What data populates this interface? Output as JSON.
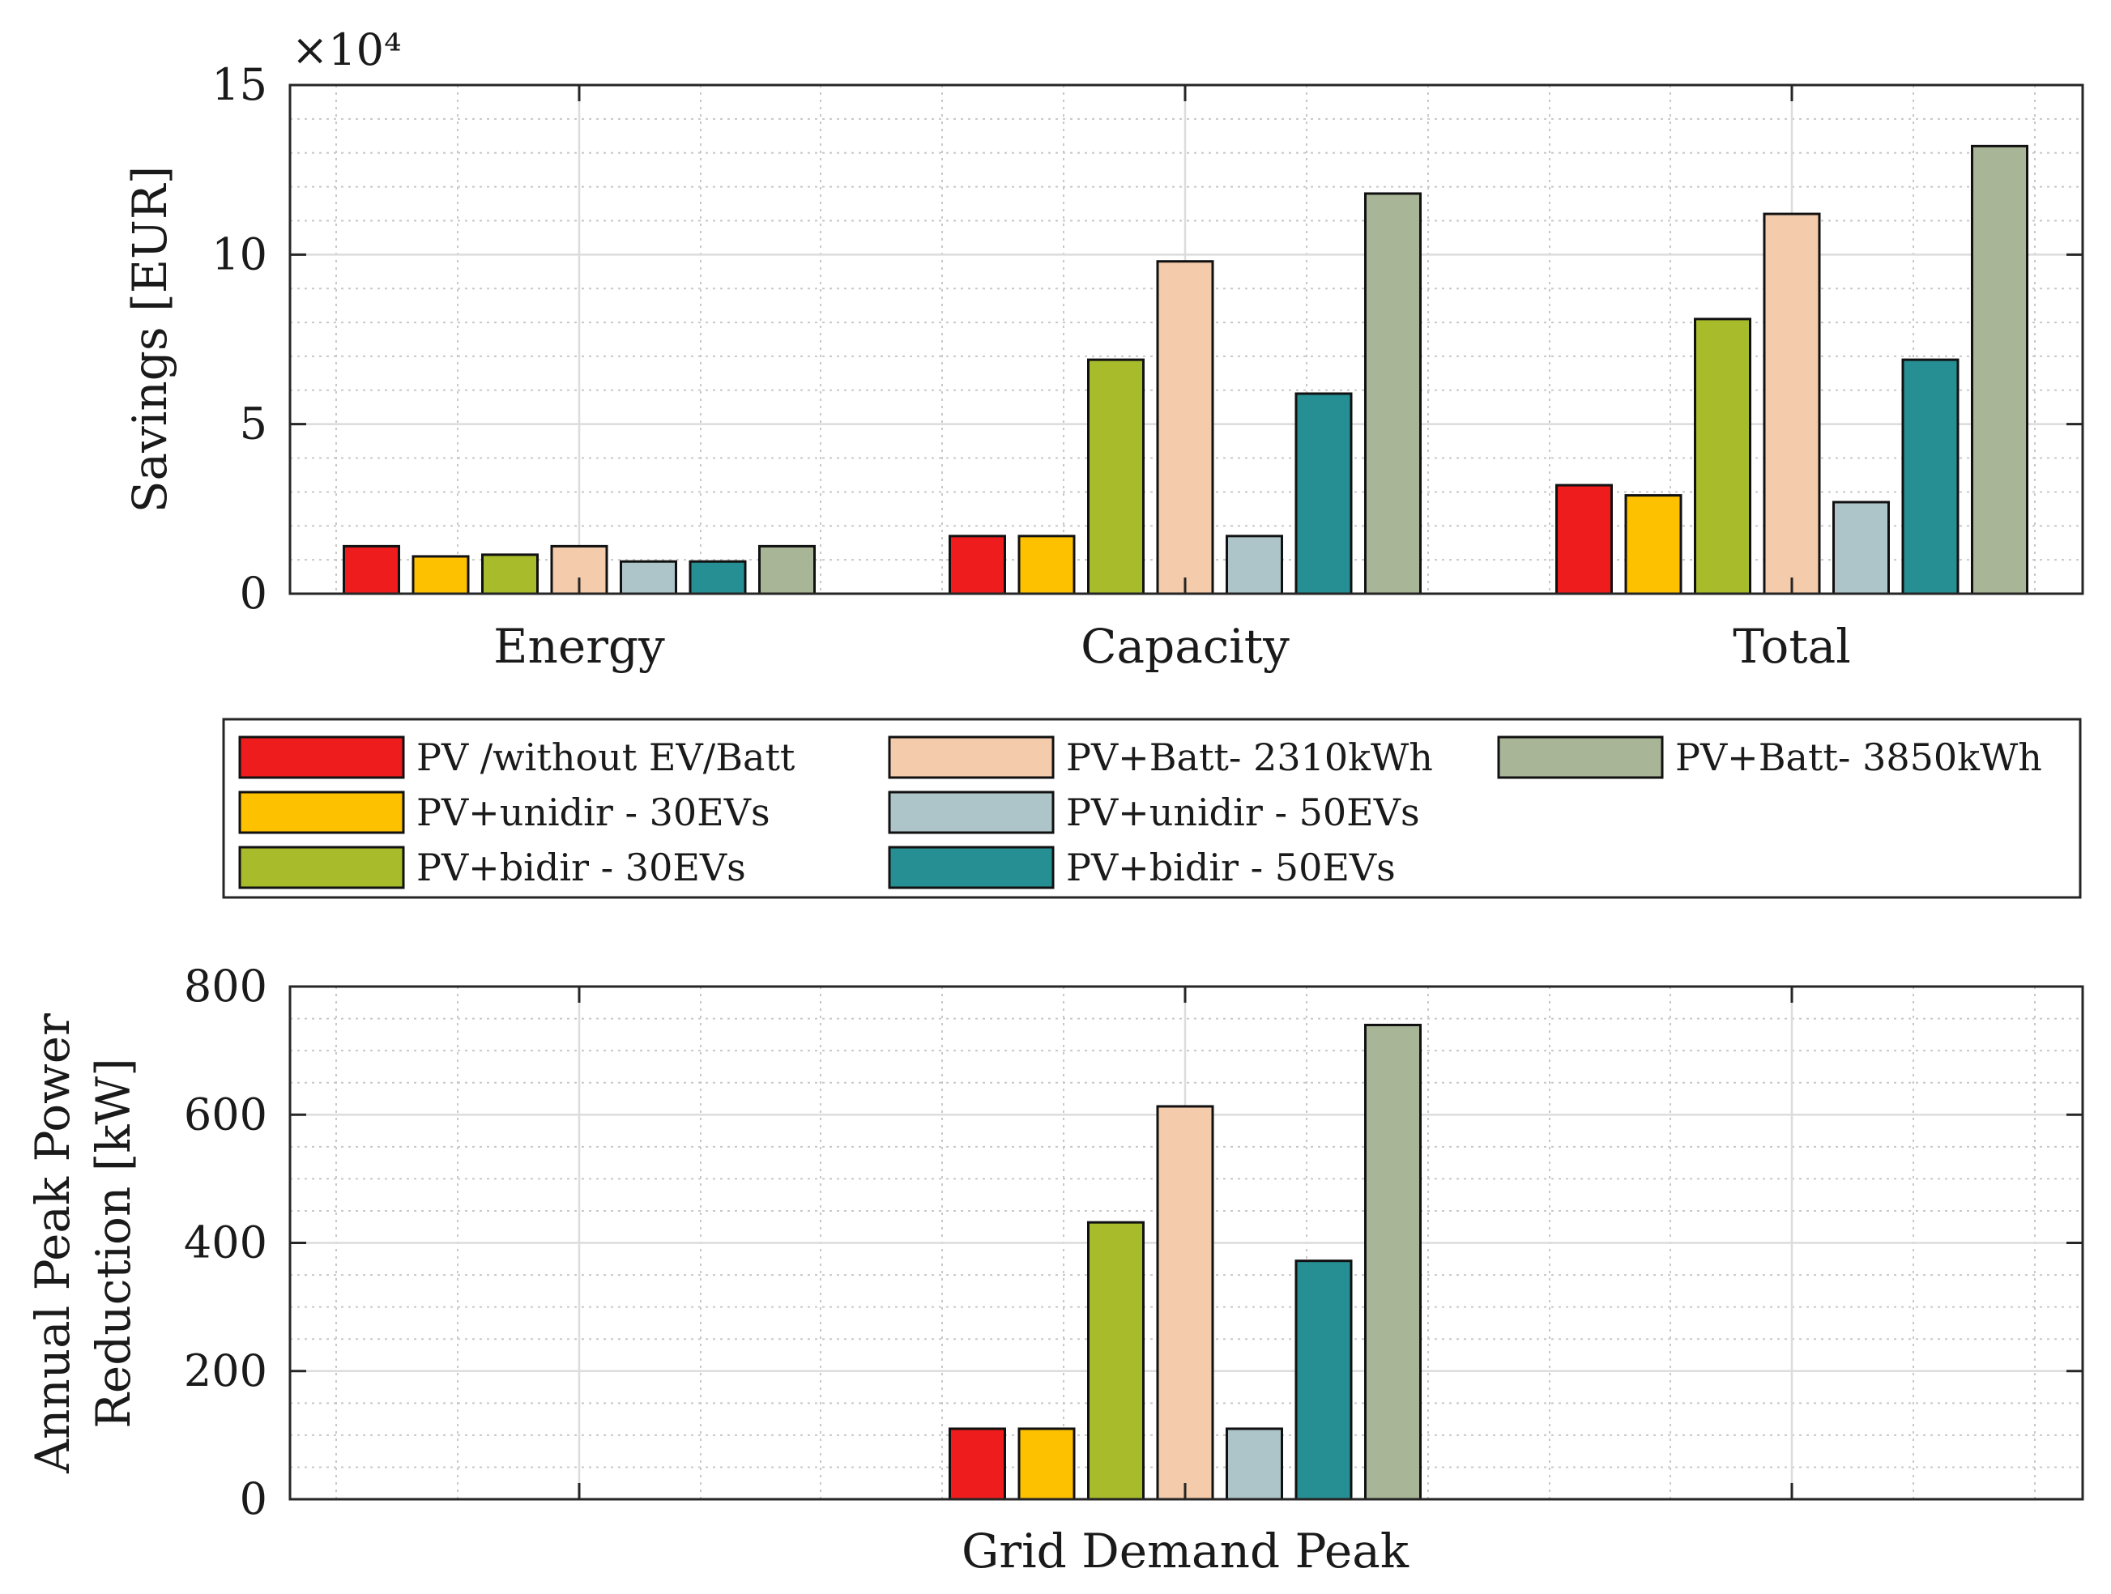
{
  "chart_data": [
    {
      "type": "bar",
      "ylabel": "Savings [EUR]",
      "exponent_label": "×10⁴",
      "ylim": [
        0,
        15
      ],
      "yticks": [
        0,
        5,
        10,
        15
      ],
      "y_tick_labels": [
        "0",
        "5",
        "10",
        "15"
      ],
      "grid": true,
      "categories": [
        "Energy",
        "Capacity",
        "Total"
      ],
      "series": [
        {
          "name": "PV /without EV/Batt",
          "color": "#ee1c1c",
          "values": [
            1.4,
            1.7,
            3.2
          ]
        },
        {
          "name": "PV+unidir - 30EVs",
          "color": "#fdc100",
          "values": [
            1.1,
            1.7,
            2.9
          ]
        },
        {
          "name": "PV+bidir - 30EVs",
          "color": "#a8bb2b",
          "values": [
            1.15,
            6.9,
            8.1
          ]
        },
        {
          "name": "PV+Batt- 2310kWh",
          "color": "#f4cbab",
          "values": [
            1.4,
            9.8,
            11.2
          ]
        },
        {
          "name": "PV+unidir - 50EVs",
          "color": "#adc4c8",
          "values": [
            0.95,
            1.7,
            2.7
          ]
        },
        {
          "name": "PV+bidir - 50EVs",
          "color": "#268f94",
          "values": [
            0.95,
            5.9,
            6.9
          ]
        },
        {
          "name": "PV+Batt- 3850kWh",
          "color": "#a8b596",
          "values": [
            1.4,
            11.8,
            13.2
          ]
        }
      ]
    },
    {
      "type": "bar",
      "ylabel_lines": [
        "Annual Peak Power",
        "Reduction [kW]"
      ],
      "ylim": [
        0,
        800
      ],
      "yticks": [
        0,
        200,
        400,
        600,
        800
      ],
      "y_tick_labels": [
        "0",
        "200",
        "400",
        "600",
        "800"
      ],
      "grid": true,
      "categories": [
        "Grid Demand Peak"
      ],
      "series": [
        {
          "name": "PV /without EV/Batt",
          "values": [
            110
          ]
        },
        {
          "name": "PV+unidir - 30EVs",
          "values": [
            110
          ]
        },
        {
          "name": "PV+bidir - 30EVs",
          "values": [
            432
          ]
        },
        {
          "name": "PV+Batt- 2310kWh",
          "values": [
            613
          ]
        },
        {
          "name": "PV+unidir - 50EVs",
          "values": [
            110
          ]
        },
        {
          "name": "PV+bidir - 50EVs",
          "values": [
            372
          ]
        },
        {
          "name": "PV+Batt- 3850kWh",
          "values": [
            740
          ]
        }
      ]
    }
  ],
  "legend": {
    "placement": "between-charts",
    "columns": 3,
    "items": [
      "PV /without EV/Batt",
      "PV+unidir - 30EVs",
      "PV+bidir - 30EVs",
      "PV+Batt- 2310kWh",
      "PV+unidir - 50EVs",
      "PV+bidir - 50EVs",
      "PV+Batt- 3850kWh"
    ]
  }
}
